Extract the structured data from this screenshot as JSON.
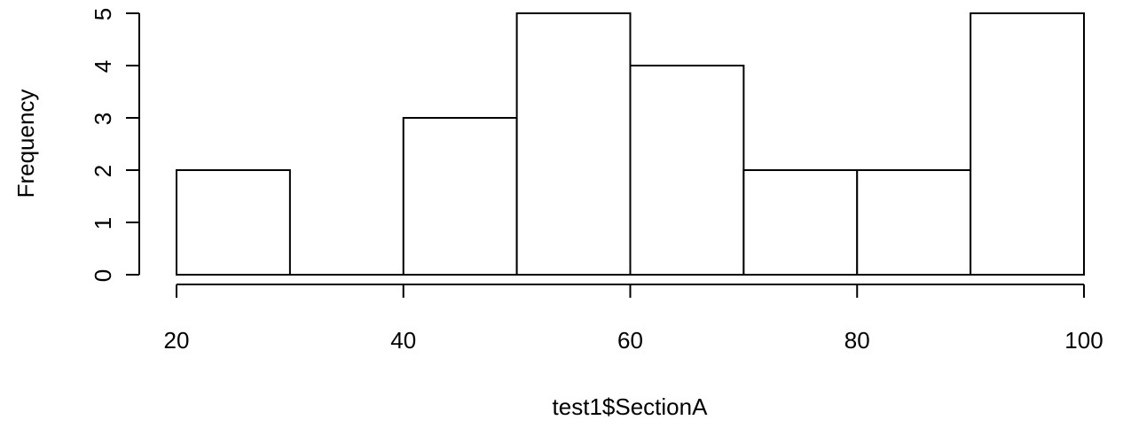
{
  "chart_data": {
    "type": "bar",
    "subtype": "histogram",
    "title": "",
    "xlabel": "test1$SectionA",
    "ylabel": "Frequency",
    "bins": [
      {
        "start": 20,
        "end": 30,
        "count": 2
      },
      {
        "start": 30,
        "end": 40,
        "count": 0
      },
      {
        "start": 40,
        "end": 50,
        "count": 3
      },
      {
        "start": 50,
        "end": 60,
        "count": 5
      },
      {
        "start": 60,
        "end": 70,
        "count": 4
      },
      {
        "start": 70,
        "end": 80,
        "count": 2
      },
      {
        "start": 80,
        "end": 90,
        "count": 2
      },
      {
        "start": 90,
        "end": 100,
        "count": 5
      }
    ],
    "xlim": [
      20,
      100
    ],
    "ylim": [
      0,
      5
    ],
    "xticks": [
      20,
      40,
      60,
      80,
      100
    ],
    "yticks": [
      0,
      1,
      2,
      3,
      4,
      5
    ],
    "grid": false,
    "bar_fill": "#ffffff",
    "bar_stroke": "#000000"
  }
}
